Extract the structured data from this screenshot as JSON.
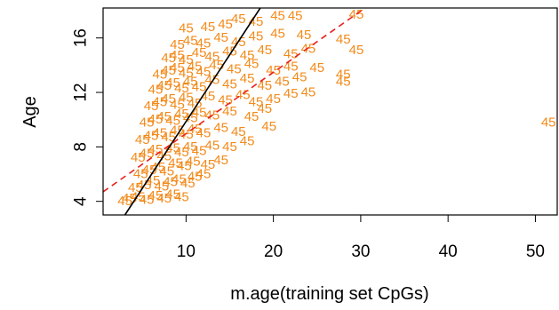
{
  "chart_data": {
    "type": "scatter",
    "title": "",
    "xlabel": "m.age(training set CpGs)",
    "ylabel": "Age",
    "xlim": [
      0.5,
      52.5
    ],
    "ylim": [
      3,
      18.2
    ],
    "x_ticks": [
      10,
      20,
      30,
      40,
      50
    ],
    "x_tick_labels": [
      "10",
      "20",
      "30",
      "40",
      "50"
    ],
    "y_ticks": [
      4,
      8,
      12,
      16
    ],
    "y_tick_labels": [
      "4",
      "8",
      "12",
      "16"
    ],
    "point_label": "45",
    "point_color": "#f28a1a",
    "grid": false,
    "series": [
      {
        "values": [
          {
            "x": 3.0,
            "y": 4.0
          },
          {
            "x": 3.5,
            "y": 4.2
          },
          {
            "x": 4.5,
            "y": 4.3
          },
          {
            "x": 5.5,
            "y": 4.1
          },
          {
            "x": 6.5,
            "y": 4.4
          },
          {
            "x": 7.5,
            "y": 4.2
          },
          {
            "x": 8.5,
            "y": 4.5
          },
          {
            "x": 9.5,
            "y": 4.3
          },
          {
            "x": 4.2,
            "y": 5.0
          },
          {
            "x": 5.2,
            "y": 5.2
          },
          {
            "x": 6.2,
            "y": 5.5
          },
          {
            "x": 7.2,
            "y": 5.1
          },
          {
            "x": 8.2,
            "y": 5.4
          },
          {
            "x": 9.2,
            "y": 5.6
          },
          {
            "x": 10.2,
            "y": 5.3
          },
          {
            "x": 11.0,
            "y": 5.8
          },
          {
            "x": 12.0,
            "y": 6.0
          },
          {
            "x": 4.8,
            "y": 6.0
          },
          {
            "x": 5.8,
            "y": 6.3
          },
          {
            "x": 6.8,
            "y": 6.5
          },
          {
            "x": 7.8,
            "y": 6.2
          },
          {
            "x": 8.8,
            "y": 6.8
          },
          {
            "x": 9.8,
            "y": 6.6
          },
          {
            "x": 10.8,
            "y": 6.9
          },
          {
            "x": 12.5,
            "y": 6.7
          },
          {
            "x": 14.0,
            "y": 7.0
          },
          {
            "x": 4.5,
            "y": 7.2
          },
          {
            "x": 5.5,
            "y": 7.5
          },
          {
            "x": 6.5,
            "y": 7.8
          },
          {
            "x": 7.5,
            "y": 7.3
          },
          {
            "x": 8.5,
            "y": 7.9
          },
          {
            "x": 9.5,
            "y": 7.6
          },
          {
            "x": 10.5,
            "y": 8.0
          },
          {
            "x": 11.5,
            "y": 7.7
          },
          {
            "x": 13.0,
            "y": 8.1
          },
          {
            "x": 15.0,
            "y": 8.0
          },
          {
            "x": 17.0,
            "y": 8.4
          },
          {
            "x": 5.0,
            "y": 8.5
          },
          {
            "x": 6.0,
            "y": 8.8
          },
          {
            "x": 7.0,
            "y": 9.0
          },
          {
            "x": 8.0,
            "y": 8.7
          },
          {
            "x": 9.0,
            "y": 9.2
          },
          {
            "x": 10.0,
            "y": 8.9
          },
          {
            "x": 11.0,
            "y": 9.3
          },
          {
            "x": 12.0,
            "y": 9.0
          },
          {
            "x": 14.0,
            "y": 9.4
          },
          {
            "x": 16.0,
            "y": 9.1
          },
          {
            "x": 19.5,
            "y": 9.5
          },
          {
            "x": 5.5,
            "y": 9.8
          },
          {
            "x": 6.5,
            "y": 10.0
          },
          {
            "x": 7.5,
            "y": 10.2
          },
          {
            "x": 8.5,
            "y": 9.9
          },
          {
            "x": 9.5,
            "y": 10.4
          },
          {
            "x": 10.5,
            "y": 10.1
          },
          {
            "x": 11.5,
            "y": 10.5
          },
          {
            "x": 13.0,
            "y": 10.3
          },
          {
            "x": 15.0,
            "y": 10.6
          },
          {
            "x": 17.5,
            "y": 10.2
          },
          {
            "x": 19.0,
            "y": 10.8
          },
          {
            "x": 6.0,
            "y": 11.0
          },
          {
            "x": 7.0,
            "y": 11.3
          },
          {
            "x": 8.0,
            "y": 11.5
          },
          {
            "x": 9.0,
            "y": 11.1
          },
          {
            "x": 10.0,
            "y": 11.6
          },
          {
            "x": 11.0,
            "y": 11.2
          },
          {
            "x": 12.5,
            "y": 11.7
          },
          {
            "x": 14.5,
            "y": 11.4
          },
          {
            "x": 16.5,
            "y": 11.8
          },
          {
            "x": 18.0,
            "y": 11.3
          },
          {
            "x": 20.0,
            "y": 11.5
          },
          {
            "x": 22.0,
            "y": 11.9
          },
          {
            "x": 24.0,
            "y": 12.0
          },
          {
            "x": 6.5,
            "y": 12.2
          },
          {
            "x": 7.5,
            "y": 12.5
          },
          {
            "x": 8.5,
            "y": 12.7
          },
          {
            "x": 9.5,
            "y": 12.3
          },
          {
            "x": 10.5,
            "y": 12.8
          },
          {
            "x": 11.5,
            "y": 12.4
          },
          {
            "x": 13.0,
            "y": 12.9
          },
          {
            "x": 15.0,
            "y": 12.6
          },
          {
            "x": 17.0,
            "y": 13.0
          },
          {
            "x": 19.0,
            "y": 12.5
          },
          {
            "x": 21.0,
            "y": 12.8
          },
          {
            "x": 23.0,
            "y": 13.1
          },
          {
            "x": 28.0,
            "y": 12.8
          },
          {
            "x": 7.0,
            "y": 13.3
          },
          {
            "x": 8.0,
            "y": 13.6
          },
          {
            "x": 9.0,
            "y": 13.8
          },
          {
            "x": 10.0,
            "y": 13.4
          },
          {
            "x": 11.0,
            "y": 13.9
          },
          {
            "x": 12.0,
            "y": 13.5
          },
          {
            "x": 13.5,
            "y": 14.0
          },
          {
            "x": 15.5,
            "y": 13.7
          },
          {
            "x": 17.5,
            "y": 14.1
          },
          {
            "x": 20.0,
            "y": 13.6
          },
          {
            "x": 22.0,
            "y": 13.9
          },
          {
            "x": 25.0,
            "y": 13.8
          },
          {
            "x": 28.0,
            "y": 13.3
          },
          {
            "x": 8.0,
            "y": 14.5
          },
          {
            "x": 9.0,
            "y": 14.7
          },
          {
            "x": 10.0,
            "y": 14.4
          },
          {
            "x": 11.5,
            "y": 14.9
          },
          {
            "x": 13.0,
            "y": 14.6
          },
          {
            "x": 15.0,
            "y": 15.0
          },
          {
            "x": 17.0,
            "y": 14.7
          },
          {
            "x": 19.0,
            "y": 15.1
          },
          {
            "x": 22.0,
            "y": 14.8
          },
          {
            "x": 24.0,
            "y": 15.2
          },
          {
            "x": 9.0,
            "y": 15.5
          },
          {
            "x": 10.5,
            "y": 15.8
          },
          {
            "x": 12.0,
            "y": 15.6
          },
          {
            "x": 14.0,
            "y": 16.0
          },
          {
            "x": 16.0,
            "y": 15.7
          },
          {
            "x": 18.0,
            "y": 16.1
          },
          {
            "x": 20.5,
            "y": 16.3
          },
          {
            "x": 23.5,
            "y": 16.2
          },
          {
            "x": 28.0,
            "y": 15.9
          },
          {
            "x": 29.5,
            "y": 15.1
          },
          {
            "x": 10.0,
            "y": 16.7
          },
          {
            "x": 12.5,
            "y": 16.8
          },
          {
            "x": 14.5,
            "y": 17.0
          },
          {
            "x": 16.0,
            "y": 17.4
          },
          {
            "x": 18.0,
            "y": 17.2
          },
          {
            "x": 20.5,
            "y": 17.6
          },
          {
            "x": 22.5,
            "y": 17.6
          },
          {
            "x": 29.5,
            "y": 17.7
          },
          {
            "x": 51.5,
            "y": 9.8
          }
        ]
      }
    ],
    "fit_lines": [
      {
        "style": "solid",
        "color": "#000000",
        "x": [
          3.0,
          18.5
        ],
        "y": [
          3.0,
          18.2
        ]
      },
      {
        "style": "dashed",
        "color": "#e8201c",
        "x": [
          0.5,
          30.5
        ],
        "y": [
          4.7,
          18.2
        ]
      }
    ]
  }
}
